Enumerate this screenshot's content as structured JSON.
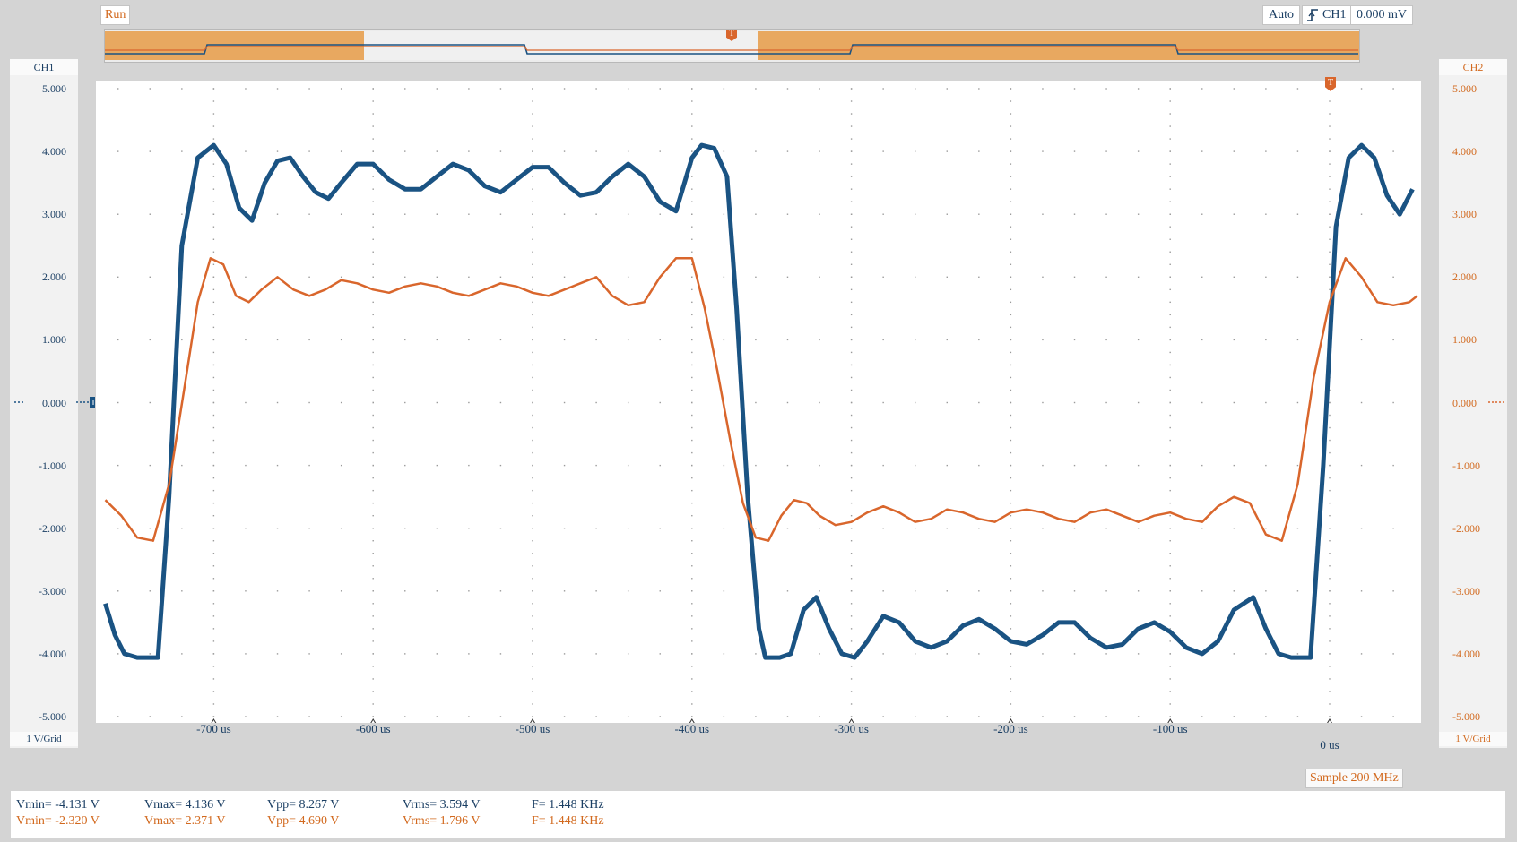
{
  "toolbar": {
    "run_label": "Run",
    "trigger_mode": "Auto",
    "trigger_source": "CH1",
    "trigger_level": "0.000 mV",
    "trigger_marker": "T"
  },
  "channels": {
    "ch1": {
      "label": "CH1",
      "scale_label": "1 V/Grid",
      "color": "#1a5383"
    },
    "ch2": {
      "label": "CH2",
      "scale_label": "1 V/Grid",
      "color": "#d9662c"
    }
  },
  "axes": {
    "y_ticks": [
      "5.000",
      "4.000",
      "3.000",
      "2.000",
      "1.000",
      "0.000",
      "-1.000",
      "-2.000",
      "-3.000",
      "-4.000",
      "-5.000"
    ],
    "x_ticks": [
      "-700 us",
      "-600 us",
      "-500 us",
      "-400 us",
      "-300 us",
      "-200 us",
      "-100 us",
      "0 us"
    ]
  },
  "status": {
    "sample_rate": "Sample 200 MHz"
  },
  "measurements": {
    "ch1": {
      "vmin": "Vmin= -4.131 V",
      "vmax": "Vmax= 4.136 V",
      "vpp": "Vpp= 8.267 V",
      "vrms": "Vrms= 3.594 V",
      "freq": "F= 1.448 KHz"
    },
    "ch2": {
      "vmin": "Vmin= -2.320 V",
      "vmax": "Vmax= 2.371 V",
      "vpp": "Vpp= 4.690 V",
      "vrms": "Vrms= 1.796 V",
      "freq": "F= 1.448 KHz"
    }
  },
  "chart_data": {
    "type": "line",
    "x_unit": "us",
    "y_unit": "V",
    "xlim": [
      -780,
      60
    ],
    "ylim": [
      -5,
      5
    ],
    "grid": true,
    "series": [
      {
        "name": "CH1",
        "color": "#1a5383",
        "x": [
          -768,
          -762,
          -756,
          -748,
          -742,
          -735,
          -728,
          -720,
          -710,
          -700,
          -692,
          -684,
          -676,
          -668,
          -660,
          -652,
          -644,
          -636,
          -628,
          -620,
          -610,
          -600,
          -590,
          -580,
          -570,
          -560,
          -550,
          -540,
          -530,
          -520,
          -510,
          -500,
          -490,
          -480,
          -470,
          -460,
          -450,
          -440,
          -430,
          -420,
          -410,
          -400,
          -394,
          -386,
          -378,
          -372,
          -365,
          -358,
          -354,
          -345,
          -338,
          -330,
          -322,
          -314,
          -306,
          -298,
          -290,
          -280,
          -270,
          -260,
          -250,
          -240,
          -230,
          -220,
          -210,
          -200,
          -190,
          -180,
          -170,
          -160,
          -150,
          -140,
          -130,
          -120,
          -110,
          -100,
          -90,
          -80,
          -70,
          -60,
          -48,
          -40,
          -32,
          -24,
          -18,
          -12,
          -4,
          4,
          12,
          20,
          28,
          36,
          44,
          52
        ],
        "y": [
          -3.2,
          -3.7,
          -4.0,
          -4.06,
          -4.06,
          -4.06,
          -1.5,
          2.5,
          3.9,
          4.1,
          3.8,
          3.1,
          2.9,
          3.5,
          3.85,
          3.9,
          3.6,
          3.35,
          3.25,
          3.5,
          3.8,
          3.8,
          3.55,
          3.4,
          3.4,
          3.6,
          3.8,
          3.7,
          3.45,
          3.35,
          3.55,
          3.75,
          3.75,
          3.5,
          3.3,
          3.35,
          3.6,
          3.8,
          3.6,
          3.2,
          3.05,
          3.9,
          4.1,
          4.05,
          3.6,
          1.5,
          -1.5,
          -3.6,
          -4.06,
          -4.06,
          -4.0,
          -3.3,
          -3.1,
          -3.6,
          -4.0,
          -4.06,
          -3.8,
          -3.4,
          -3.5,
          -3.8,
          -3.9,
          -3.8,
          -3.55,
          -3.45,
          -3.6,
          -3.8,
          -3.85,
          -3.7,
          -3.5,
          -3.5,
          -3.75,
          -3.9,
          -3.85,
          -3.6,
          -3.5,
          -3.65,
          -3.9,
          -4.0,
          -3.8,
          -3.3,
          -3.1,
          -3.6,
          -4.0,
          -4.06,
          -4.06,
          -4.06,
          -1.0,
          2.8,
          3.9,
          4.1,
          3.9,
          3.3,
          3.0,
          3.4
        ]
      },
      {
        "name": "CH2",
        "color": "#d9662c",
        "x": [
          -768,
          -758,
          -748,
          -738,
          -728,
          -718,
          -710,
          -702,
          -694,
          -686,
          -678,
          -670,
          -660,
          -650,
          -640,
          -630,
          -620,
          -610,
          -600,
          -590,
          -580,
          -570,
          -560,
          -550,
          -540,
          -530,
          -520,
          -510,
          -500,
          -490,
          -480,
          -470,
          -460,
          -450,
          -440,
          -430,
          -420,
          -410,
          -400,
          -392,
          -384,
          -376,
          -368,
          -360,
          -352,
          -344,
          -336,
          -328,
          -320,
          -310,
          -300,
          -290,
          -280,
          -270,
          -260,
          -250,
          -240,
          -230,
          -220,
          -210,
          -200,
          -190,
          -180,
          -170,
          -160,
          -150,
          -140,
          -130,
          -120,
          -110,
          -100,
          -90,
          -80,
          -70,
          -60,
          -50,
          -40,
          -30,
          -20,
          -10,
          0,
          10,
          20,
          30,
          40,
          50,
          55
        ],
        "y": [
          -1.55,
          -1.8,
          -2.15,
          -2.2,
          -1.3,
          0.3,
          1.6,
          2.3,
          2.2,
          1.7,
          1.6,
          1.8,
          2.0,
          1.8,
          1.7,
          1.8,
          1.95,
          1.9,
          1.8,
          1.75,
          1.85,
          1.9,
          1.85,
          1.75,
          1.7,
          1.8,
          1.9,
          1.85,
          1.75,
          1.7,
          1.8,
          1.9,
          2.0,
          1.7,
          1.55,
          1.6,
          2.0,
          2.3,
          2.3,
          1.5,
          0.5,
          -0.6,
          -1.6,
          -2.15,
          -2.2,
          -1.8,
          -1.55,
          -1.6,
          -1.8,
          -1.95,
          -1.9,
          -1.75,
          -1.65,
          -1.75,
          -1.9,
          -1.85,
          -1.7,
          -1.75,
          -1.85,
          -1.9,
          -1.75,
          -1.7,
          -1.75,
          -1.85,
          -1.9,
          -1.75,
          -1.7,
          -1.8,
          -1.9,
          -1.8,
          -1.75,
          -1.85,
          -1.9,
          -1.65,
          -1.5,
          -1.6,
          -2.1,
          -2.2,
          -1.3,
          0.4,
          1.6,
          2.3,
          2.0,
          1.6,
          1.55,
          1.6,
          1.7
        ]
      }
    ]
  }
}
